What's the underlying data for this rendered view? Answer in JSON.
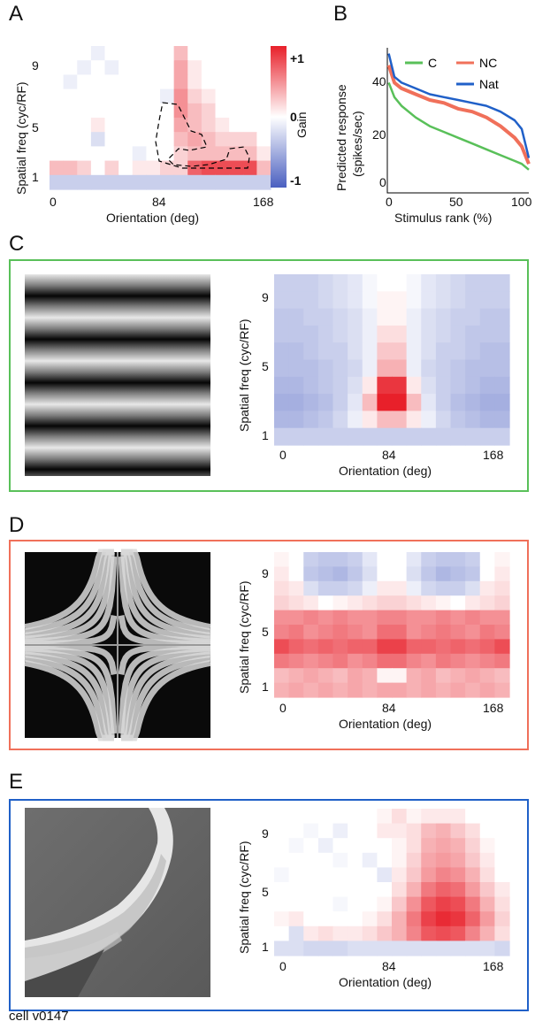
{
  "panels": {
    "A": "A",
    "B": "B",
    "C": "C",
    "D": "D",
    "E": "E"
  },
  "colors": {
    "positive": "#e8202a",
    "negative": "#4a5fc0",
    "green": "#59c059",
    "orange": "#f0705a",
    "blue": "#2060c8"
  },
  "heatmap_common": {
    "xlabel": "Orientation (deg)",
    "ylabel": "Spatial freq (cyc/RF)",
    "xticks": [
      "0",
      "84",
      "168"
    ],
    "yticks": [
      "9",
      "5",
      "1"
    ]
  },
  "colorbar": {
    "label": "Gain",
    "ticks": [
      "+1",
      "0",
      "-1"
    ]
  },
  "line_chart": {
    "ylabel_line1": "Predicted response",
    "ylabel_line2": "(spikes/sec)",
    "xlabel": "Stimulus rank (%)",
    "xticks": [
      "0",
      "50",
      "100"
    ],
    "yticks": [
      "40",
      "20",
      "0"
    ],
    "legend": [
      "C",
      "NC",
      "Nat"
    ]
  },
  "footer": "cell v0147",
  "chart_data": [
    {
      "type": "heatmap",
      "panel": "A",
      "xlabel": "Orientation (deg)",
      "ylabel": "Spatial freq (cyc/RF)",
      "x_range": [
        0,
        168
      ],
      "y_range": [
        1,
        10
      ],
      "colorbar_range": [
        -1,
        1
      ],
      "colorbar_label": "Gain",
      "rows_top_to_bottom": [
        [
          0,
          0,
          0,
          -0.1,
          0,
          0,
          0,
          0,
          0,
          0.3,
          0,
          0,
          0,
          0,
          0,
          0
        ],
        [
          0,
          0,
          -0.1,
          0,
          -0.1,
          0,
          0,
          0,
          0,
          0.4,
          0.1,
          0,
          0,
          0,
          0,
          0
        ],
        [
          0,
          -0.1,
          0,
          0,
          0,
          0,
          0,
          0,
          0,
          0.4,
          0.1,
          0,
          0,
          0,
          0,
          0
        ],
        [
          0,
          0,
          0,
          0,
          0,
          0,
          0,
          0,
          -0.1,
          0.5,
          0.2,
          0.1,
          0,
          0,
          0,
          0
        ],
        [
          0,
          0,
          0,
          0,
          0,
          0,
          0,
          0,
          0,
          0.5,
          0.3,
          0.2,
          0,
          0,
          0,
          0
        ],
        [
          0,
          0,
          0,
          0.1,
          0,
          0,
          0,
          0,
          0,
          0.4,
          0.3,
          0.2,
          0.1,
          0,
          0,
          0
        ],
        [
          0,
          0,
          0,
          -0.2,
          0,
          0,
          0,
          0,
          0,
          0.3,
          0.4,
          0.3,
          0.2,
          0.2,
          0.2,
          0
        ],
        [
          0,
          0,
          0,
          0,
          0,
          0,
          -0.1,
          0,
          0,
          0.2,
          0.3,
          0.3,
          0.3,
          0.3,
          0.3,
          0.1
        ],
        [
          0.3,
          0.3,
          0.2,
          0,
          0.2,
          0,
          0.1,
          0.1,
          0.2,
          0.2,
          0.7,
          0.8,
          0.8,
          0.8,
          0.8,
          0.3
        ],
        [
          -0.3,
          -0.3,
          -0.3,
          -0.3,
          -0.3,
          -0.3,
          -0.3,
          -0.3,
          -0.3,
          -0.3,
          -0.3,
          -0.3,
          -0.3,
          -0.3,
          -0.3,
          -0.3
        ]
      ]
    },
    {
      "type": "line",
      "panel": "B",
      "xlabel": "Stimulus rank (%)",
      "ylabel": "Predicted response (spikes/sec)",
      "xlim": [
        0,
        100
      ],
      "ylim": [
        0,
        50
      ],
      "series": [
        {
          "name": "C",
          "x": [
            1,
            5,
            10,
            20,
            30,
            40,
            50,
            60,
            70,
            80,
            90,
            95,
            100
          ],
          "y": [
            38,
            33,
            30,
            26,
            23,
            21,
            19,
            17,
            15,
            13,
            11,
            10,
            8
          ]
        },
        {
          "name": "NC",
          "x": [
            1,
            5,
            10,
            20,
            30,
            40,
            50,
            60,
            70,
            80,
            90,
            95,
            100
          ],
          "y": [
            44,
            38,
            36,
            34,
            32,
            31,
            29,
            28,
            26,
            23,
            19,
            16,
            10
          ]
        },
        {
          "name": "Nat",
          "x": [
            1,
            5,
            10,
            20,
            30,
            40,
            50,
            60,
            70,
            80,
            90,
            95,
            100
          ],
          "y": [
            48,
            40,
            38,
            36,
            34,
            33,
            32,
            31,
            30,
            28,
            25,
            22,
            12
          ]
        }
      ]
    },
    {
      "type": "heatmap",
      "panel": "C",
      "xlabel": "Orientation (deg)",
      "ylabel": "Spatial freq (cyc/RF)",
      "x_range": [
        0,
        168
      ],
      "y_range": [
        1,
        10
      ],
      "rows_top_to_bottom": [
        [
          -0.3,
          -0.3,
          -0.3,
          -0.25,
          -0.2,
          -0.15,
          -0.05,
          0,
          0,
          -0.05,
          -0.15,
          -0.2,
          -0.25,
          -0.3,
          -0.3,
          -0.3
        ],
        [
          -0.3,
          -0.3,
          -0.3,
          -0.25,
          -0.2,
          -0.15,
          -0.05,
          0.05,
          0.05,
          -0.05,
          -0.15,
          -0.2,
          -0.25,
          -0.3,
          -0.3,
          -0.3
        ],
        [
          -0.35,
          -0.35,
          -0.3,
          -0.3,
          -0.25,
          -0.2,
          -0.1,
          0.05,
          0.05,
          -0.1,
          -0.2,
          -0.25,
          -0.3,
          -0.3,
          -0.35,
          -0.35
        ],
        [
          -0.35,
          -0.35,
          -0.35,
          -0.3,
          -0.25,
          -0.2,
          -0.1,
          0.15,
          0.15,
          -0.1,
          -0.2,
          -0.25,
          -0.3,
          -0.35,
          -0.35,
          -0.35
        ],
        [
          -0.4,
          -0.4,
          -0.35,
          -0.3,
          -0.3,
          -0.2,
          -0.1,
          0.25,
          0.25,
          -0.1,
          -0.2,
          -0.3,
          -0.3,
          -0.35,
          -0.4,
          -0.4
        ],
        [
          -0.4,
          -0.4,
          -0.4,
          -0.35,
          -0.3,
          -0.25,
          -0.1,
          0.35,
          0.35,
          -0.1,
          -0.25,
          -0.3,
          -0.35,
          -0.4,
          -0.4,
          -0.4
        ],
        [
          -0.45,
          -0.45,
          -0.4,
          -0.35,
          -0.3,
          -0.2,
          0.1,
          0.9,
          0.9,
          0.1,
          -0.2,
          -0.3,
          -0.35,
          -0.4,
          -0.45,
          -0.45
        ],
        [
          -0.5,
          -0.5,
          -0.45,
          -0.4,
          -0.3,
          -0.15,
          0.3,
          1.0,
          1.0,
          0.3,
          -0.15,
          -0.3,
          -0.4,
          -0.45,
          -0.5,
          -0.5
        ],
        [
          -0.45,
          -0.45,
          -0.4,
          -0.35,
          -0.25,
          -0.1,
          0.1,
          0.3,
          0.3,
          0.1,
          -0.1,
          -0.25,
          -0.35,
          -0.4,
          -0.45,
          -0.45
        ],
        [
          -0.3,
          -0.3,
          -0.3,
          -0.3,
          -0.3,
          -0.3,
          -0.3,
          -0.3,
          -0.3,
          -0.3,
          -0.3,
          -0.3,
          -0.3,
          -0.3,
          -0.3,
          -0.3
        ]
      ]
    },
    {
      "type": "heatmap",
      "panel": "D",
      "xlabel": "Orientation (deg)",
      "ylabel": "Spatial freq (cyc/RF)",
      "x_range": [
        0,
        168
      ],
      "y_range": [
        1,
        10
      ],
      "rows_top_to_bottom": [
        [
          0.05,
          0,
          -0.3,
          -0.35,
          -0.35,
          -0.3,
          -0.15,
          0,
          0,
          -0.15,
          -0.3,
          -0.35,
          -0.35,
          -0.3,
          0,
          0.05
        ],
        [
          0.1,
          0,
          -0.35,
          -0.4,
          -0.45,
          -0.35,
          -0.2,
          0,
          0,
          -0.2,
          -0.35,
          -0.45,
          -0.4,
          -0.35,
          0,
          0.1
        ],
        [
          0.15,
          0.1,
          -0.2,
          -0.3,
          -0.3,
          -0.25,
          -0.1,
          0.1,
          0.1,
          -0.1,
          -0.25,
          -0.3,
          -0.3,
          -0.2,
          0.1,
          0.15
        ],
        [
          0.2,
          0.15,
          0.1,
          0,
          0.05,
          0.1,
          0.15,
          0.2,
          0.2,
          0.15,
          0.1,
          0.05,
          0,
          0.1,
          0.15,
          0.2
        ],
        [
          0.5,
          0.5,
          0.55,
          0.5,
          0.55,
          0.5,
          0.5,
          0.55,
          0.55,
          0.5,
          0.5,
          0.55,
          0.5,
          0.55,
          0.5,
          0.5
        ],
        [
          0.55,
          0.6,
          0.5,
          0.55,
          0.6,
          0.55,
          0.5,
          0.65,
          0.65,
          0.5,
          0.55,
          0.6,
          0.55,
          0.5,
          0.6,
          0.55
        ],
        [
          0.8,
          0.7,
          0.65,
          0.7,
          0.65,
          0.7,
          0.7,
          0.85,
          0.85,
          0.7,
          0.7,
          0.65,
          0.7,
          0.65,
          0.7,
          0.8
        ],
        [
          0.6,
          0.55,
          0.5,
          0.55,
          0.6,
          0.5,
          0.55,
          0.65,
          0.65,
          0.55,
          0.5,
          0.6,
          0.55,
          0.5,
          0.55,
          0.6
        ],
        [
          0.3,
          0.35,
          0.4,
          0.35,
          0.3,
          0.4,
          0.35,
          0.05,
          0.05,
          0.35,
          0.4,
          0.3,
          0.35,
          0.4,
          0.35,
          0.3
        ],
        [
          0.35,
          0.4,
          0.35,
          0.4,
          0.35,
          0.4,
          0.35,
          0.4,
          0.4,
          0.35,
          0.4,
          0.35,
          0.4,
          0.35,
          0.4,
          0.35
        ]
      ]
    },
    {
      "type": "heatmap",
      "panel": "E",
      "xlabel": "Orientation (deg)",
      "ylabel": "Spatial freq (cyc/RF)",
      "x_range": [
        0,
        168
      ],
      "y_range": [
        1,
        10
      ],
      "rows_top_to_bottom": [
        [
          0,
          0,
          0,
          0,
          0,
          0,
          0,
          0.05,
          0.15,
          0.05,
          0.1,
          0.1,
          0.1,
          0,
          0,
          0
        ],
        [
          0,
          0,
          -0.05,
          0,
          -0.1,
          0,
          0,
          0.1,
          0.1,
          0.15,
          0.3,
          0.35,
          0.25,
          0.15,
          0,
          0
        ],
        [
          0,
          -0.05,
          0,
          -0.1,
          0,
          0,
          0,
          0,
          0.05,
          0.15,
          0.35,
          0.4,
          0.35,
          0.2,
          0.05,
          0
        ],
        [
          0,
          0,
          0,
          0,
          -0.05,
          0,
          -0.1,
          0,
          0.05,
          0.2,
          0.4,
          0.45,
          0.4,
          0.25,
          0.1,
          0
        ],
        [
          -0.05,
          0,
          0,
          0,
          0,
          0,
          0,
          -0.15,
          0.1,
          0.25,
          0.45,
          0.55,
          0.5,
          0.35,
          0.15,
          0
        ],
        [
          0,
          0,
          0,
          0,
          0,
          0,
          0,
          0,
          0.15,
          0.35,
          0.6,
          0.7,
          0.65,
          0.45,
          0.25,
          0.1
        ],
        [
          0,
          0,
          0,
          0,
          -0.05,
          0,
          0,
          0.05,
          0.25,
          0.5,
          0.75,
          0.85,
          0.8,
          0.6,
          0.35,
          0.15
        ],
        [
          0.05,
          0.1,
          0,
          0,
          0,
          0,
          0.05,
          0.15,
          0.35,
          0.6,
          0.85,
          0.95,
          0.9,
          0.7,
          0.45,
          0.2
        ],
        [
          0,
          -0.2,
          0.1,
          0.15,
          0.1,
          0.1,
          0.15,
          0.25,
          0.35,
          0.55,
          0.75,
          0.8,
          0.75,
          0.55,
          0.35,
          0.15
        ],
        [
          -0.2,
          -0.2,
          -0.25,
          -0.25,
          -0.25,
          -0.2,
          -0.2,
          -0.2,
          -0.2,
          -0.2,
          -0.2,
          -0.2,
          -0.2,
          -0.2,
          -0.2,
          -0.25
        ]
      ]
    }
  ]
}
